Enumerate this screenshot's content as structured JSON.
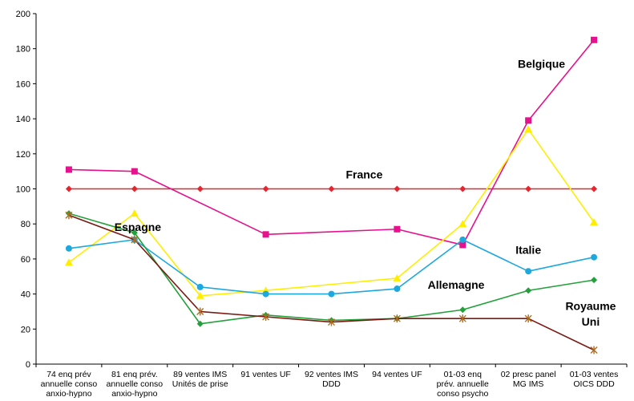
{
  "chart_data": {
    "type": "line",
    "ylim": [
      0,
      200
    ],
    "yticks": [
      0,
      20,
      40,
      60,
      80,
      100,
      120,
      140,
      160,
      180,
      200
    ],
    "grid": false,
    "legend": "none",
    "categories": [
      [
        "74 enq prév",
        "annuelle conso",
        "anxio-hypno"
      ],
      [
        "81 enq prév.",
        "annuelle conso",
        "anxio-hypno"
      ],
      [
        "89 ventes IMS",
        "Unités de prise"
      ],
      [
        "91 ventes UF"
      ],
      [
        "92 ventes IMS",
        "DDD"
      ],
      [
        "94 ventes UF"
      ],
      [
        "01-03 enq",
        "prév. annuelle",
        "conso psycho"
      ],
      [
        "02 presc panel",
        "MG IMS"
      ],
      [
        "01-03 ventes",
        "OICS DDD"
      ]
    ],
    "series": [
      {
        "name": "France",
        "color": "#e8252e",
        "marker": "diamond",
        "values": [
          100,
          100,
          100,
          100,
          100,
          100,
          100,
          100,
          100
        ]
      },
      {
        "name": "Belgique",
        "color": "#e6118c",
        "marker": "square",
        "values": [
          111,
          110,
          null,
          74,
          null,
          77,
          68,
          139,
          185
        ]
      },
      {
        "name": "Espagne",
        "color": "#ffee00",
        "marker": "triangle",
        "values": [
          58,
          86,
          39,
          42,
          null,
          49,
          80,
          134,
          81
        ]
      },
      {
        "name": "Italie",
        "color": "#1ea8de",
        "marker": "circle",
        "values": [
          66,
          71,
          44,
          40,
          40,
          43,
          71,
          53,
          61
        ]
      },
      {
        "name": "Allemagne",
        "color": "#22a03a",
        "marker": "diamond",
        "values": [
          86,
          75,
          23,
          28,
          25,
          26,
          31,
          42,
          48
        ]
      },
      {
        "name": "Royaume\nUni",
        "color": "#7a1a12",
        "marker": "star",
        "values": [
          85,
          71,
          30,
          27,
          24,
          26,
          26,
          26,
          8
        ]
      }
    ],
    "labels": [
      {
        "text": "France",
        "x": 5,
        "y": 106
      },
      {
        "text": "Belgique",
        "x": 7.7,
        "y": 169
      },
      {
        "text": "Espagne",
        "x": 1.55,
        "y": 76
      },
      {
        "text": "Italie",
        "x": 7.5,
        "y": 63
      },
      {
        "text": "Allemagne",
        "x": 6.4,
        "y": 43
      },
      {
        "text": "Royaume",
        "x": 8.45,
        "y": 31
      },
      {
        "text": "Uni",
        "x": 8.45,
        "y": 22
      }
    ]
  }
}
